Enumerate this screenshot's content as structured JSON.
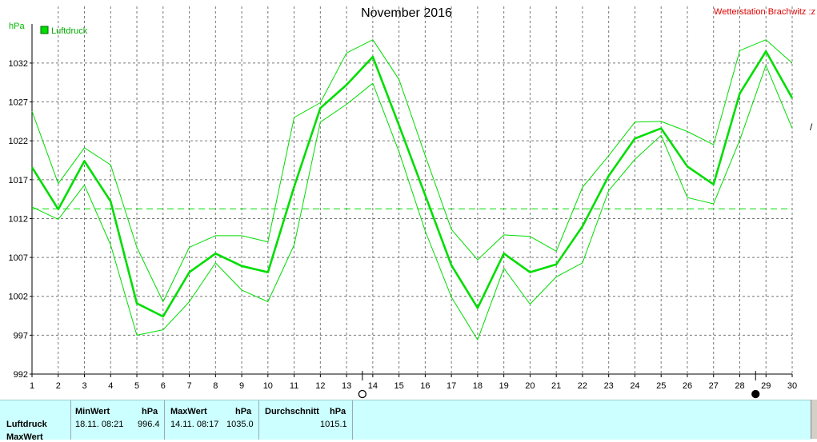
{
  "header": {
    "title": "November 2016",
    "station": "Wetterstation Brachwitz :z",
    "unit": "hPa",
    "legend_label": "Luftdruck",
    "legend_color": "#00dd00",
    "edge_mark": "/"
  },
  "chart_data": {
    "type": "line",
    "title": "November 2016",
    "ylabel": "hPa",
    "xlabel": "",
    "ylim": [
      992,
      1036
    ],
    "yticks": [
      992,
      997,
      1002,
      1007,
      1012,
      1017,
      1022,
      1027,
      1032
    ],
    "x": [
      1,
      2,
      3,
      4,
      5,
      6,
      7,
      8,
      9,
      10,
      11,
      12,
      13,
      14,
      15,
      16,
      17,
      18,
      19,
      20,
      21,
      22,
      23,
      24,
      25,
      26,
      27,
      28,
      29,
      30
    ],
    "grid": true,
    "legend_position": "top-left",
    "series": [
      {
        "name": "Luftdruck",
        "role": "mean",
        "color": "#00dd00",
        "values": [
          1018.6,
          1013.2,
          1019.4,
          1014.2,
          1001.1,
          999.4,
          1005.1,
          1007.5,
          1005.9,
          1005.1,
          1016.1,
          1026.2,
          1029.2,
          1032.8,
          1024.0,
          1015.0,
          1006.0,
          1000.5,
          1007.5,
          1005.1,
          1006.1,
          1011.0,
          1017.5,
          1022.3,
          1023.6,
          1018.7,
          1016.4,
          1028.1,
          1033.5,
          1027.5
        ]
      },
      {
        "role": "max",
        "color": "#00dd00",
        "values": [
          1025.8,
          1016.5,
          1021.1,
          1018.9,
          1008.3,
          1001.3,
          1008.3,
          1009.8,
          1009.8,
          1009.0,
          1025.0,
          1026.9,
          1033.3,
          1035.0,
          1029.9,
          1020.1,
          1010.6,
          1006.7,
          1009.9,
          1009.7,
          1007.8,
          1016.0,
          1020.1,
          1024.4,
          1024.5,
          1023.2,
          1021.5,
          1033.6,
          1035.0,
          1032.0
        ]
      },
      {
        "role": "min",
        "color": "#00dd00",
        "values": [
          1013.5,
          1011.9,
          1016.3,
          1008.6,
          997.0,
          997.7,
          1001.3,
          1006.3,
          1002.8,
          1001.3,
          1008.6,
          1024.4,
          1026.7,
          1029.4,
          1020.6,
          1010.4,
          1001.9,
          996.4,
          1005.6,
          1001.0,
          1004.5,
          1006.3,
          1015.6,
          1019.6,
          1022.7,
          1014.7,
          1013.9,
          1022.1,
          1031.7,
          1023.6
        ]
      }
    ],
    "reference_line": {
      "value": 1013.25,
      "style": "dashed",
      "color": "#00dd00"
    },
    "moon_phase_markers": [
      {
        "day": 14,
        "phase": "full-moon"
      },
      {
        "day": 29,
        "phase": "new-moon"
      }
    ]
  },
  "stats": {
    "row_labels": [
      "Luftdruck",
      "MaxWert"
    ],
    "min_header": "MinWert",
    "min_unit": "hPa",
    "min_time": "18.11.  08:21",
    "min_value": "996.4",
    "max_header": "MaxWert",
    "max_unit": "hPa",
    "max_time": "14.11.  08:17",
    "max_value": "1035.0",
    "avg_header": "Durchschnitt",
    "avg_unit": "hPa",
    "avg_value": "1015.1"
  }
}
